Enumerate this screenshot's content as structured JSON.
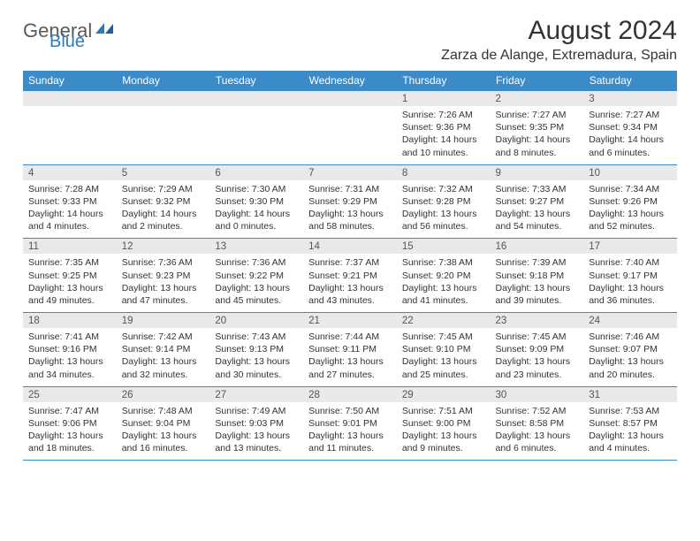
{
  "logo": {
    "text1": "General",
    "text2": "Blue"
  },
  "header": {
    "month_year": "August 2024",
    "location": "Zarza de Alange, Extremadura, Spain"
  },
  "colors": {
    "header_bg": "#3b8bc9",
    "header_text": "#ffffff",
    "daynum_bg": "#e9e9e9",
    "rule": "#3b8bc9",
    "body_text": "#333333",
    "logo_gray": "#5a5a5a",
    "logo_blue": "#2b7bbf"
  },
  "dow": [
    "Sunday",
    "Monday",
    "Tuesday",
    "Wednesday",
    "Thursday",
    "Friday",
    "Saturday"
  ],
  "weeks": [
    [
      null,
      null,
      null,
      null,
      {
        "n": "1",
        "sr": "Sunrise: 7:26 AM",
        "ss": "Sunset: 9:36 PM",
        "d1": "Daylight: 14 hours",
        "d2": "and 10 minutes."
      },
      {
        "n": "2",
        "sr": "Sunrise: 7:27 AM",
        "ss": "Sunset: 9:35 PM",
        "d1": "Daylight: 14 hours",
        "d2": "and 8 minutes."
      },
      {
        "n": "3",
        "sr": "Sunrise: 7:27 AM",
        "ss": "Sunset: 9:34 PM",
        "d1": "Daylight: 14 hours",
        "d2": "and 6 minutes."
      }
    ],
    [
      {
        "n": "4",
        "sr": "Sunrise: 7:28 AM",
        "ss": "Sunset: 9:33 PM",
        "d1": "Daylight: 14 hours",
        "d2": "and 4 minutes."
      },
      {
        "n": "5",
        "sr": "Sunrise: 7:29 AM",
        "ss": "Sunset: 9:32 PM",
        "d1": "Daylight: 14 hours",
        "d2": "and 2 minutes."
      },
      {
        "n": "6",
        "sr": "Sunrise: 7:30 AM",
        "ss": "Sunset: 9:30 PM",
        "d1": "Daylight: 14 hours",
        "d2": "and 0 minutes."
      },
      {
        "n": "7",
        "sr": "Sunrise: 7:31 AM",
        "ss": "Sunset: 9:29 PM",
        "d1": "Daylight: 13 hours",
        "d2": "and 58 minutes."
      },
      {
        "n": "8",
        "sr": "Sunrise: 7:32 AM",
        "ss": "Sunset: 9:28 PM",
        "d1": "Daylight: 13 hours",
        "d2": "and 56 minutes."
      },
      {
        "n": "9",
        "sr": "Sunrise: 7:33 AM",
        "ss": "Sunset: 9:27 PM",
        "d1": "Daylight: 13 hours",
        "d2": "and 54 minutes."
      },
      {
        "n": "10",
        "sr": "Sunrise: 7:34 AM",
        "ss": "Sunset: 9:26 PM",
        "d1": "Daylight: 13 hours",
        "d2": "and 52 minutes."
      }
    ],
    [
      {
        "n": "11",
        "sr": "Sunrise: 7:35 AM",
        "ss": "Sunset: 9:25 PM",
        "d1": "Daylight: 13 hours",
        "d2": "and 49 minutes."
      },
      {
        "n": "12",
        "sr": "Sunrise: 7:36 AM",
        "ss": "Sunset: 9:23 PM",
        "d1": "Daylight: 13 hours",
        "d2": "and 47 minutes."
      },
      {
        "n": "13",
        "sr": "Sunrise: 7:36 AM",
        "ss": "Sunset: 9:22 PM",
        "d1": "Daylight: 13 hours",
        "d2": "and 45 minutes."
      },
      {
        "n": "14",
        "sr": "Sunrise: 7:37 AM",
        "ss": "Sunset: 9:21 PM",
        "d1": "Daylight: 13 hours",
        "d2": "and 43 minutes."
      },
      {
        "n": "15",
        "sr": "Sunrise: 7:38 AM",
        "ss": "Sunset: 9:20 PM",
        "d1": "Daylight: 13 hours",
        "d2": "and 41 minutes."
      },
      {
        "n": "16",
        "sr": "Sunrise: 7:39 AM",
        "ss": "Sunset: 9:18 PM",
        "d1": "Daylight: 13 hours",
        "d2": "and 39 minutes."
      },
      {
        "n": "17",
        "sr": "Sunrise: 7:40 AM",
        "ss": "Sunset: 9:17 PM",
        "d1": "Daylight: 13 hours",
        "d2": "and 36 minutes."
      }
    ],
    [
      {
        "n": "18",
        "sr": "Sunrise: 7:41 AM",
        "ss": "Sunset: 9:16 PM",
        "d1": "Daylight: 13 hours",
        "d2": "and 34 minutes."
      },
      {
        "n": "19",
        "sr": "Sunrise: 7:42 AM",
        "ss": "Sunset: 9:14 PM",
        "d1": "Daylight: 13 hours",
        "d2": "and 32 minutes."
      },
      {
        "n": "20",
        "sr": "Sunrise: 7:43 AM",
        "ss": "Sunset: 9:13 PM",
        "d1": "Daylight: 13 hours",
        "d2": "and 30 minutes."
      },
      {
        "n": "21",
        "sr": "Sunrise: 7:44 AM",
        "ss": "Sunset: 9:11 PM",
        "d1": "Daylight: 13 hours",
        "d2": "and 27 minutes."
      },
      {
        "n": "22",
        "sr": "Sunrise: 7:45 AM",
        "ss": "Sunset: 9:10 PM",
        "d1": "Daylight: 13 hours",
        "d2": "and 25 minutes."
      },
      {
        "n": "23",
        "sr": "Sunrise: 7:45 AM",
        "ss": "Sunset: 9:09 PM",
        "d1": "Daylight: 13 hours",
        "d2": "and 23 minutes."
      },
      {
        "n": "24",
        "sr": "Sunrise: 7:46 AM",
        "ss": "Sunset: 9:07 PM",
        "d1": "Daylight: 13 hours",
        "d2": "and 20 minutes."
      }
    ],
    [
      {
        "n": "25",
        "sr": "Sunrise: 7:47 AM",
        "ss": "Sunset: 9:06 PM",
        "d1": "Daylight: 13 hours",
        "d2": "and 18 minutes."
      },
      {
        "n": "26",
        "sr": "Sunrise: 7:48 AM",
        "ss": "Sunset: 9:04 PM",
        "d1": "Daylight: 13 hours",
        "d2": "and 16 minutes."
      },
      {
        "n": "27",
        "sr": "Sunrise: 7:49 AM",
        "ss": "Sunset: 9:03 PM",
        "d1": "Daylight: 13 hours",
        "d2": "and 13 minutes."
      },
      {
        "n": "28",
        "sr": "Sunrise: 7:50 AM",
        "ss": "Sunset: 9:01 PM",
        "d1": "Daylight: 13 hours",
        "d2": "and 11 minutes."
      },
      {
        "n": "29",
        "sr": "Sunrise: 7:51 AM",
        "ss": "Sunset: 9:00 PM",
        "d1": "Daylight: 13 hours",
        "d2": "and 9 minutes."
      },
      {
        "n": "30",
        "sr": "Sunrise: 7:52 AM",
        "ss": "Sunset: 8:58 PM",
        "d1": "Daylight: 13 hours",
        "d2": "and 6 minutes."
      },
      {
        "n": "31",
        "sr": "Sunrise: 7:53 AM",
        "ss": "Sunset: 8:57 PM",
        "d1": "Daylight: 13 hours",
        "d2": "and 4 minutes."
      }
    ]
  ]
}
